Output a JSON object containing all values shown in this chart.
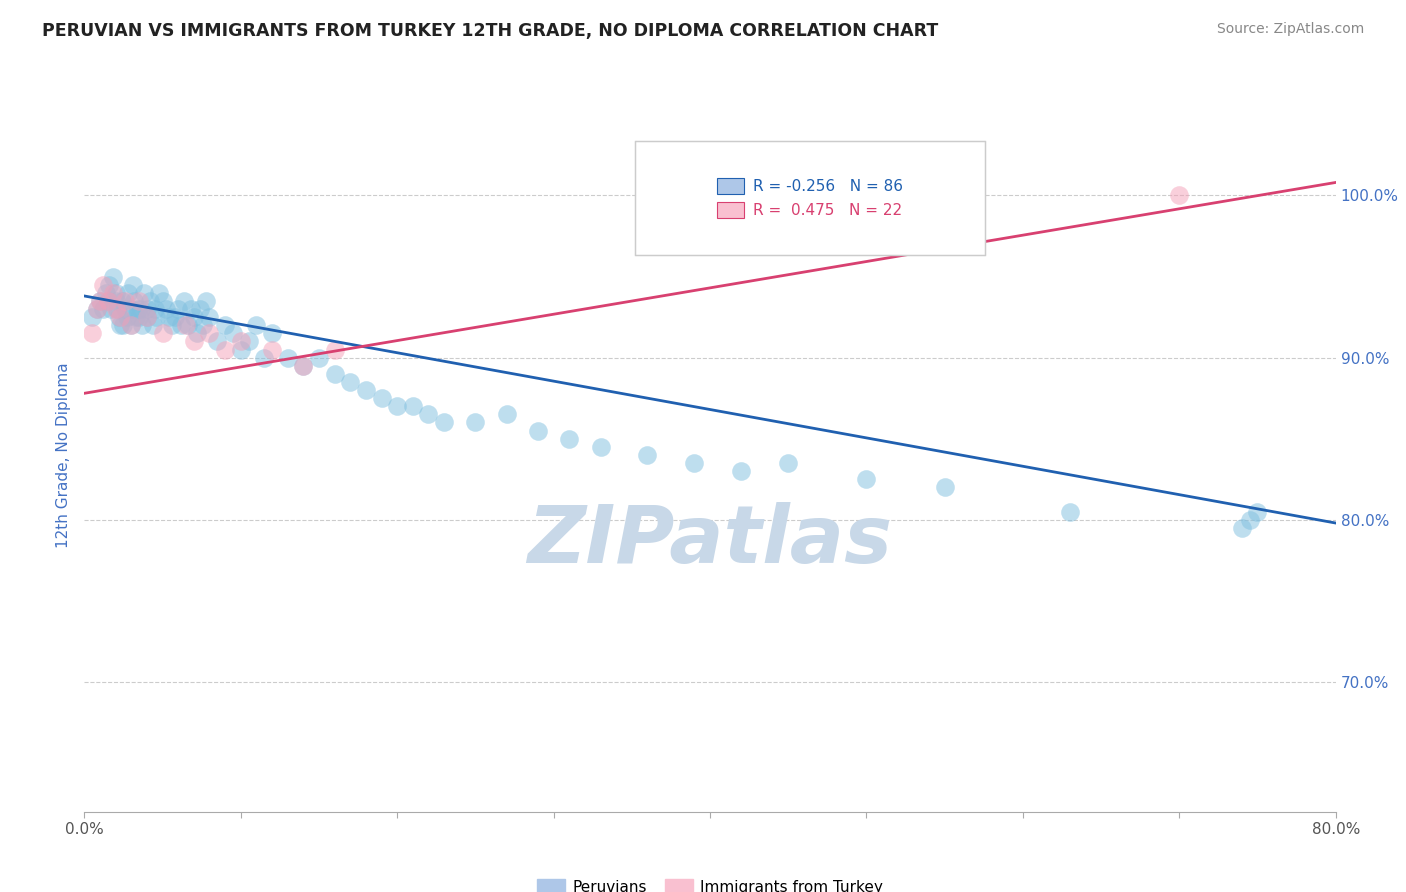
{
  "title": "PERUVIAN VS IMMIGRANTS FROM TURKEY 12TH GRADE, NO DIPLOMA CORRELATION CHART",
  "source": "Source: ZipAtlas.com",
  "ylabel": "12th Grade, No Diploma",
  "x_tick_labels_outer": [
    "0.0%",
    "80.0%"
  ],
  "x_tick_vals_outer": [
    0.0,
    80.0
  ],
  "x_minor_ticks": [
    10.0,
    20.0,
    30.0,
    40.0,
    50.0,
    60.0,
    70.0
  ],
  "y_tick_labels": [
    "70.0%",
    "80.0%",
    "90.0%",
    "100.0%"
  ],
  "y_tick_vals": [
    70.0,
    80.0,
    90.0,
    100.0
  ],
  "xlim": [
    0.0,
    80.0
  ],
  "ylim": [
    62.0,
    106.0
  ],
  "blue_R": -0.256,
  "blue_N": 86,
  "pink_R": 0.475,
  "pink_N": 22,
  "blue_color": "#7fbfdf",
  "pink_color": "#f4a0b8",
  "blue_line_color": "#2060b0",
  "pink_line_color": "#d84070",
  "watermark_text": "ZIPatlas",
  "watermark_color": "#c8d8e8",
  "blue_scatter_x": [
    0.5,
    0.8,
    1.0,
    1.2,
    1.4,
    1.5,
    1.6,
    1.7,
    1.8,
    2.0,
    2.0,
    2.1,
    2.2,
    2.3,
    2.4,
    2.5,
    2.6,
    2.7,
    2.8,
    3.0,
    3.0,
    3.1,
    3.2,
    3.3,
    3.4,
    3.5,
    3.6,
    3.7,
    3.8,
    4.0,
    4.0,
    4.2,
    4.4,
    4.5,
    4.6,
    4.8,
    5.0,
    5.2,
    5.4,
    5.6,
    5.8,
    6.0,
    6.2,
    6.4,
    6.6,
    6.8,
    7.0,
    7.2,
    7.4,
    7.6,
    7.8,
    8.0,
    8.5,
    9.0,
    9.5,
    10.0,
    10.5,
    11.0,
    11.5,
    12.0,
    13.0,
    14.0,
    15.0,
    16.0,
    17.0,
    18.0,
    19.0,
    20.0,
    21.0,
    22.0,
    23.0,
    25.0,
    27.0,
    29.0,
    31.0,
    33.0,
    36.0,
    39.0,
    42.0,
    45.0,
    50.0,
    55.0,
    63.0,
    74.0,
    74.5,
    75.0
  ],
  "blue_scatter_y": [
    92.5,
    93.0,
    93.5,
    93.0,
    94.0,
    93.5,
    94.5,
    93.0,
    95.0,
    94.0,
    93.5,
    93.0,
    92.5,
    92.0,
    93.5,
    92.0,
    93.0,
    92.5,
    94.0,
    93.0,
    92.0,
    94.5,
    93.5,
    92.5,
    93.0,
    92.5,
    93.0,
    92.0,
    94.0,
    93.0,
    92.5,
    93.5,
    92.0,
    93.0,
    92.5,
    94.0,
    93.5,
    93.0,
    92.5,
    92.0,
    92.5,
    93.0,
    92.0,
    93.5,
    92.0,
    93.0,
    92.5,
    91.5,
    93.0,
    92.0,
    93.5,
    92.5,
    91.0,
    92.0,
    91.5,
    90.5,
    91.0,
    92.0,
    90.0,
    91.5,
    90.0,
    89.5,
    90.0,
    89.0,
    88.5,
    88.0,
    87.5,
    87.0,
    87.0,
    86.5,
    86.0,
    86.0,
    86.5,
    85.5,
    85.0,
    84.5,
    84.0,
    83.5,
    83.0,
    83.5,
    82.5,
    82.0,
    80.5,
    79.5,
    80.0,
    80.5
  ],
  "pink_scatter_x": [
    0.5,
    0.8,
    1.0,
    1.2,
    1.5,
    1.8,
    2.0,
    2.3,
    2.6,
    3.0,
    3.5,
    4.0,
    5.0,
    6.5,
    7.0,
    8.0,
    9.0,
    10.0,
    12.0,
    14.0,
    16.0,
    70.0
  ],
  "pink_scatter_y": [
    91.5,
    93.0,
    93.5,
    94.5,
    93.5,
    94.0,
    93.0,
    92.5,
    93.5,
    92.0,
    93.5,
    92.5,
    91.5,
    92.0,
    91.0,
    91.5,
    90.5,
    91.0,
    90.5,
    89.5,
    90.5,
    100.0
  ],
  "blue_line_x0": 0.0,
  "blue_line_x1": 80.0,
  "blue_line_y0": 93.8,
  "blue_line_y1": 79.8,
  "pink_line_x0": 0.0,
  "pink_line_x1": 80.0,
  "pink_line_y0": 87.8,
  "pink_line_y1": 100.8
}
